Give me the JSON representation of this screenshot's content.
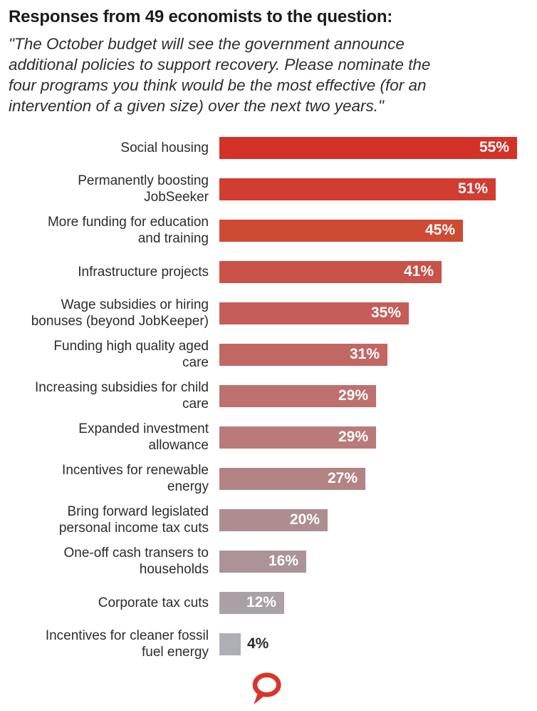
{
  "header": {
    "title": "Responses from 49 economists to the question:",
    "question": "\"The October budget will see the government announce\nadditional policies to support recovery. Please nominate the\nfour programs you think would be the most effective (for an\nintervention of a given size) over the next two years.\""
  },
  "chart_data": {
    "type": "bar",
    "orientation": "horizontal",
    "title": "Responses from 49 economists to the question:",
    "unit": "%",
    "xlim": [
      0,
      55
    ],
    "grid": false,
    "legend": "none",
    "value_label_position": "inside-end",
    "categories": [
      "Social housing",
      "Permanently boosting JobSeeker",
      "More funding for education and training",
      "Infrastructure projects",
      "Wage subsidies or hiring bonuses (beyond JobKeeper)",
      "Funding high quality aged care",
      "Increasing subsidies for child care",
      "Expanded investment allowance",
      "Incentives for renewable energy",
      "Bring forward legislated personal income tax cuts",
      "One-off cash transers to households",
      "Corporate tax cuts",
      "Incentives for cleaner fossil fuel energy"
    ],
    "values": [
      55,
      51,
      45,
      41,
      35,
      31,
      29,
      29,
      27,
      20,
      16,
      12,
      4
    ],
    "bars": [
      {
        "label_lines": [
          "Social housing"
        ],
        "value": 55,
        "value_label": "55%",
        "color": "#d43229",
        "value_inside": true
      },
      {
        "label_lines": [
          "Permanently boosting",
          "JobSeeker"
        ],
        "value": 51,
        "value_label": "51%",
        "color": "#d23c31",
        "value_inside": true
      },
      {
        "label_lines": [
          "More funding for education",
          "and training"
        ],
        "value": 45,
        "value_label": "45%",
        "color": "#cf4a33",
        "value_inside": true
      },
      {
        "label_lines": [
          "Infrastructure projects"
        ],
        "value": 41,
        "value_label": "41%",
        "color": "#c95249",
        "value_inside": true
      },
      {
        "label_lines": [
          "Wage subsidies or hiring",
          "bonuses (beyond JobKeeper)"
        ],
        "value": 35,
        "value_label": "35%",
        "color": "#c65d58",
        "value_inside": true
      },
      {
        "label_lines": [
          "Funding high quality aged",
          "care"
        ],
        "value": 31,
        "value_label": "31%",
        "color": "#c16764",
        "value_inside": true
      },
      {
        "label_lines": [
          "Increasing subsidies for child",
          "care"
        ],
        "value": 29,
        "value_label": "29%",
        "color": "#bd706e",
        "value_inside": true
      },
      {
        "label_lines": [
          "Expanded investment",
          "allowance"
        ],
        "value": 29,
        "value_label": "29%",
        "color": "#ba7a79",
        "value_inside": true
      },
      {
        "label_lines": [
          "Incentives for renewable",
          "energy"
        ],
        "value": 27,
        "value_label": "27%",
        "color": "#b38384",
        "value_inside": true
      },
      {
        "label_lines": [
          "Bring forward legislated",
          "personal income tax cuts"
        ],
        "value": 20,
        "value_label": "20%",
        "color": "#ad8d8e",
        "value_inside": true
      },
      {
        "label_lines": [
          "One-off cash transers to",
          "households"
        ],
        "value": 16,
        "value_label": "16%",
        "color": "#ab9397",
        "value_inside": true
      },
      {
        "label_lines": [
          "Corporate tax cuts"
        ],
        "value": 12,
        "value_label": "12%",
        "color": "#aaa0a7",
        "value_inside": true
      },
      {
        "label_lines": [
          "Incentives for cleaner fossil",
          "fuel energy"
        ],
        "value": 4,
        "value_label": "4%",
        "color": "#aeafb6",
        "value_inside": false
      }
    ]
  },
  "footer": {
    "logo_name": "the-conversation-speech-bubble-logo",
    "logo_color": "#d8352e"
  }
}
